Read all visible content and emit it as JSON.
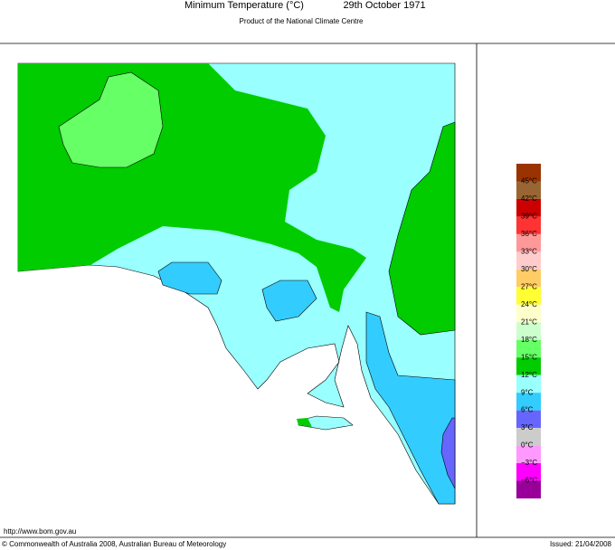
{
  "header": {
    "title": "Minimum Temperature (°C)",
    "date": "29th October 1971",
    "subtitle": "Product of the National Climate Centre"
  },
  "legend": {
    "colors": [
      "#993300",
      "#996633",
      "#cc0000",
      "#ff3333",
      "#ff9999",
      "#ffcccc",
      "#ffcc66",
      "#ffff33",
      "#ffffcc",
      "#ccffcc",
      "#66ff66",
      "#00cc00",
      "#99ffff",
      "#33ccff",
      "#6666ff",
      "#cccccc",
      "#ff99ff",
      "#ff00ff",
      "#990099"
    ],
    "labels": [
      "45°C",
      "42°C",
      "39°C",
      "36°C",
      "33°C",
      "30°C",
      "27°C",
      "24°C",
      "21°C",
      "18°C",
      "15°C",
      "12°C",
      "9°C",
      "6°C",
      "3°C",
      "0°C",
      "−3°C",
      "−6°C"
    ]
  },
  "footer": {
    "url": "http://www.bom.gov.au",
    "copyright": "© Commonwealth of Australia 2008, Australian Bureau of Meteorology",
    "issued": "Issued: 21/04/2008"
  }
}
